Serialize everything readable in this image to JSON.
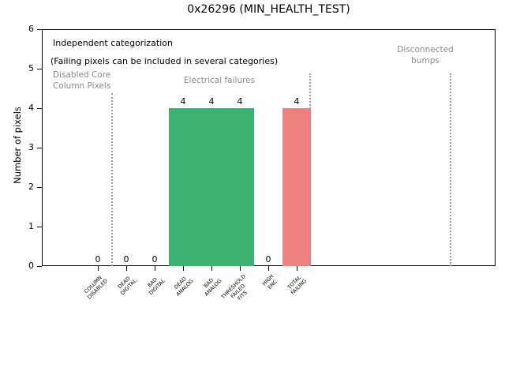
{
  "chart_data": {
    "type": "bar",
    "title": "0x26296 (MIN_HEALTH_TEST)",
    "ylabel": "Number of pixels",
    "xlabel": "",
    "ylim": [
      0,
      6
    ],
    "yticks": [
      "0",
      "1",
      "2",
      "3",
      "4",
      "5",
      "6"
    ],
    "grid": false,
    "legend": "none",
    "categories": [
      "COLUMN\nDISABLED",
      "DEAD\nDIGITAL",
      "BAD\nDIGITAL",
      "DEAD\nANALOG",
      "BAD\nANALOG",
      "THRESHOLD\nFAILED\nFITS",
      "HIGH\nENC",
      "TOTAL\nFAILING"
    ],
    "values": [
      0,
      0,
      0,
      4,
      4,
      4,
      0,
      4
    ],
    "value_labels": [
      "0",
      "0",
      "0",
      "4",
      "4",
      "4",
      "0",
      "4"
    ],
    "bar_colors": [
      "#3cb371",
      "#3cb371",
      "#3cb371",
      "#3cb371",
      "#3cb371",
      "#3cb371",
      "#3cb371",
      "#f08080"
    ],
    "colors": {
      "electrical_green": "#3cb371",
      "failing_red": "#f08080",
      "gray_annotation": "#8a8a8a",
      "separator_gray": "#9b9b9b"
    },
    "annotations": [
      {
        "id": "independent-categorization",
        "text": "Independent categorization",
        "x": 67,
        "y": 48,
        "color": "#000000",
        "size": 11,
        "align": "left"
      },
      {
        "id": "failing-pixels-note",
        "text": "(Failing pixels can be included in several categories)",
        "x": 64,
        "y": 71,
        "color": "#000000",
        "size": 11,
        "align": "left"
      },
      {
        "id": "disabled-core-column-pixels",
        "text": "Disabled Core\nColumn Pixels",
        "x": 67,
        "y": 88,
        "color": "#8a8a8a",
        "size": 10.5,
        "align": "left"
      },
      {
        "id": "electrical-failures",
        "text": "Electrical failures",
        "x": 278,
        "y": 95,
        "color": "#8a8a8a",
        "size": 10.5,
        "align": "center"
      },
      {
        "id": "disconnected-bumps",
        "text": "Disconnected\nbumps",
        "x": 539,
        "y": 56,
        "color": "#8a8a8a",
        "size": 10.5,
        "align": "center"
      }
    ],
    "separators": [
      {
        "x": 142,
        "y1": 118,
        "y2": 337
      },
      {
        "x": 393,
        "y1": 93,
        "y2": 337
      },
      {
        "x": 571,
        "y1": 93,
        "y2": 337
      }
    ]
  }
}
